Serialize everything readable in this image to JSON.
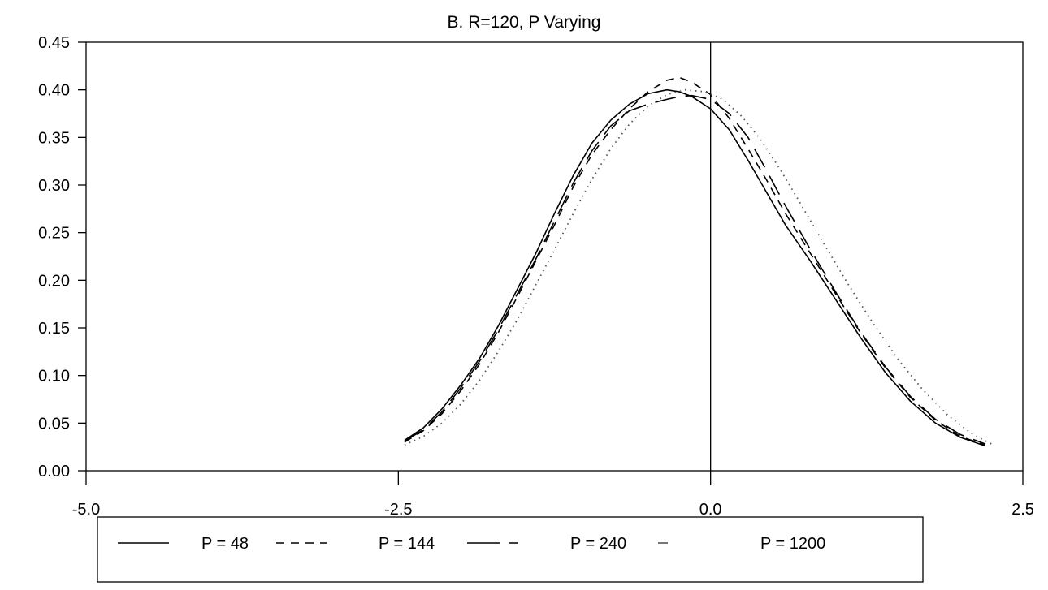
{
  "chart_data": {
    "type": "line",
    "title": "B.  R=120, P Varying",
    "xlabel": "",
    "ylabel": "",
    "xlim": [
      -5.0,
      2.5
    ],
    "ylim": [
      0.0,
      0.45
    ],
    "x_ticks": [
      "-5.0",
      "-2.5",
      "0.0",
      "2.5"
    ],
    "y_ticks": [
      "0.00",
      "0.05",
      "0.10",
      "0.15",
      "0.20",
      "0.25",
      "0.30",
      "0.35",
      "0.40",
      "0.45"
    ],
    "grid": false,
    "legend": "bottom",
    "series": [
      {
        "name": "P = 48",
        "line_style": "solid",
        "x": [
          -2.45,
          -2.3,
          -2.15,
          -2.0,
          -1.85,
          -1.7,
          -1.55,
          -1.4,
          -1.25,
          -1.1,
          -0.95,
          -0.8,
          -0.65,
          -0.5,
          -0.35,
          -0.25,
          -0.15,
          0.0,
          0.15,
          0.3,
          0.45,
          0.6,
          0.8,
          1.0,
          1.2,
          1.4,
          1.6,
          1.8,
          2.0,
          2.2
        ],
        "y": [
          0.032,
          0.045,
          0.065,
          0.09,
          0.118,
          0.152,
          0.19,
          0.228,
          0.27,
          0.31,
          0.344,
          0.368,
          0.385,
          0.396,
          0.4,
          0.398,
          0.393,
          0.38,
          0.358,
          0.326,
          0.292,
          0.258,
          0.22,
          0.18,
          0.14,
          0.103,
          0.073,
          0.05,
          0.035,
          0.026
        ]
      },
      {
        "name": "P = 144",
        "line_style": "short-dash",
        "x": [
          -2.45,
          -2.3,
          -2.15,
          -2.0,
          -1.85,
          -1.7,
          -1.55,
          -1.4,
          -1.25,
          -1.1,
          -0.95,
          -0.8,
          -0.65,
          -0.5,
          -0.35,
          -0.25,
          -0.15,
          0.0,
          0.15,
          0.3,
          0.45,
          0.6,
          0.8,
          1.0,
          1.2,
          1.4,
          1.6,
          1.8,
          2.0,
          2.2
        ],
        "y": [
          0.03,
          0.042,
          0.06,
          0.084,
          0.112,
          0.145,
          0.182,
          0.22,
          0.258,
          0.298,
          0.332,
          0.358,
          0.38,
          0.398,
          0.41,
          0.413,
          0.408,
          0.395,
          0.37,
          0.338,
          0.305,
          0.27,
          0.228,
          0.186,
          0.145,
          0.108,
          0.077,
          0.053,
          0.036,
          0.027
        ]
      },
      {
        "name": "P = 240",
        "line_style": "long-dash",
        "x": [
          -2.45,
          -2.3,
          -2.15,
          -2.0,
          -1.85,
          -1.7,
          -1.55,
          -1.4,
          -1.25,
          -1.1,
          -0.95,
          -0.8,
          -0.65,
          -0.5,
          -0.35,
          -0.25,
          -0.15,
          0.0,
          0.15,
          0.3,
          0.45,
          0.6,
          0.8,
          1.0,
          1.2,
          1.4,
          1.6,
          1.8,
          2.0,
          2.2
        ],
        "y": [
          0.031,
          0.043,
          0.062,
          0.087,
          0.115,
          0.148,
          0.185,
          0.222,
          0.262,
          0.302,
          0.336,
          0.362,
          0.378,
          0.385,
          0.39,
          0.393,
          0.394,
          0.39,
          0.375,
          0.35,
          0.315,
          0.278,
          0.232,
          0.188,
          0.146,
          0.109,
          0.078,
          0.054,
          0.038,
          0.028
        ]
      },
      {
        "name": "P = 1200",
        "line_style": "dotted",
        "x": [
          -2.45,
          -2.3,
          -2.15,
          -2.0,
          -1.85,
          -1.7,
          -1.55,
          -1.4,
          -1.25,
          -1.1,
          -0.95,
          -0.8,
          -0.65,
          -0.5,
          -0.35,
          -0.2,
          -0.05,
          0.1,
          0.25,
          0.4,
          0.55,
          0.7,
          0.9,
          1.1,
          1.3,
          1.5,
          1.7,
          1.9,
          2.1,
          2.25
        ],
        "y": [
          0.027,
          0.036,
          0.05,
          0.07,
          0.095,
          0.125,
          0.158,
          0.195,
          0.232,
          0.27,
          0.306,
          0.338,
          0.364,
          0.383,
          0.395,
          0.4,
          0.398,
          0.39,
          0.372,
          0.348,
          0.318,
          0.285,
          0.24,
          0.196,
          0.155,
          0.117,
          0.085,
          0.058,
          0.038,
          0.028
        ]
      }
    ]
  }
}
